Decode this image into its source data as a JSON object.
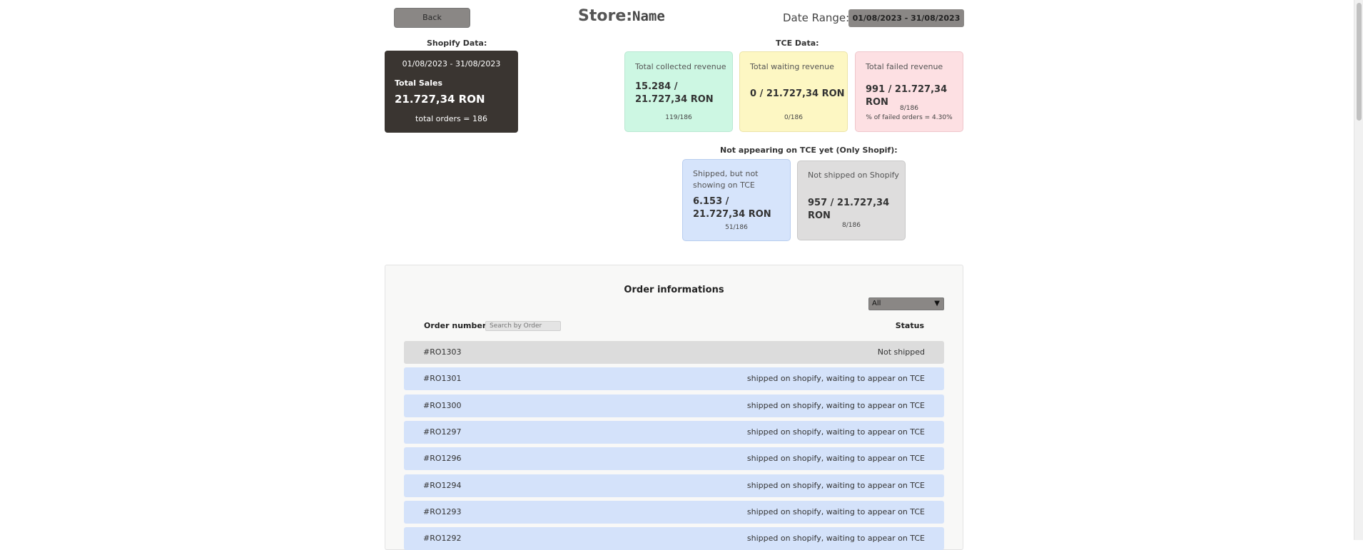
{
  "header": {
    "back_label": "Back",
    "store_label": "Store:",
    "store_name": "Name",
    "date_range_label": "Date Range:",
    "date_range_value": "01/08/2023 - 31/08/2023"
  },
  "shopify": {
    "section_label": "Shopify Data:",
    "range": "01/08/2023 - 31/08/2023",
    "total_sales_label": "Total Sales",
    "total_sales_value": "21.727,34 RON",
    "total_orders": "total orders = 186"
  },
  "tce": {
    "section_label": "TCE Data:",
    "collected": {
      "title": "Total collected revenue",
      "value": "15.284 / 21.727,34 RON",
      "foot": "119/186"
    },
    "waiting": {
      "title": "Total waiting revenue",
      "value": "0 / 21.727,34 RON",
      "foot": "0/186"
    },
    "failed": {
      "title": "Total failed revenue",
      "value": "991 / 21.727,34 RON",
      "foot": "8/186",
      "foot2": "% of failed orders = 4.30%"
    }
  },
  "not_appearing": {
    "section_label": "Not appearing on TCE yet (Only Shopif):",
    "shipped_not_tce": {
      "title": "Shipped, but not showing on TCE",
      "value": "6.153 / 21.727,34 RON",
      "foot": "51/186"
    },
    "not_shipped": {
      "title": "Not shipped on Shopify",
      "value": "957 / 21.727,34 RON",
      "foot": "8/186"
    }
  },
  "orders": {
    "title": "Order informations",
    "filter_value": "All",
    "col_order": "Order number",
    "search_placeholder": "Search by Order",
    "col_status": "Status",
    "rows": [
      {
        "number": "#RO1303",
        "status": "Not shipped"
      },
      {
        "number": "#RO1301",
        "status": "shipped on shopify, waiting to appear on TCE"
      },
      {
        "number": "#RO1300",
        "status": "shipped on shopify, waiting to appear on TCE"
      },
      {
        "number": "#RO1297",
        "status": "shipped on shopify, waiting to appear on TCE"
      },
      {
        "number": "#RO1296",
        "status": "shipped on shopify, waiting to appear on TCE"
      },
      {
        "number": "#RO1294",
        "status": "shipped on shopify, waiting to appear on TCE"
      },
      {
        "number": "#RO1293",
        "status": "shipped on shopify, waiting to appear on TCE"
      },
      {
        "number": "#RO1292",
        "status": "shipped on shopify, waiting to appear on TCE"
      }
    ]
  },
  "colors": {
    "dark_card": "#3a3531",
    "button_grey": "#8a8785",
    "green_card": "#cdf7e3",
    "yellow_card": "#fdf7c3",
    "pink_card": "#fde0e3",
    "blue_card": "#d6e4fb",
    "grey_card": "#dedddd"
  }
}
